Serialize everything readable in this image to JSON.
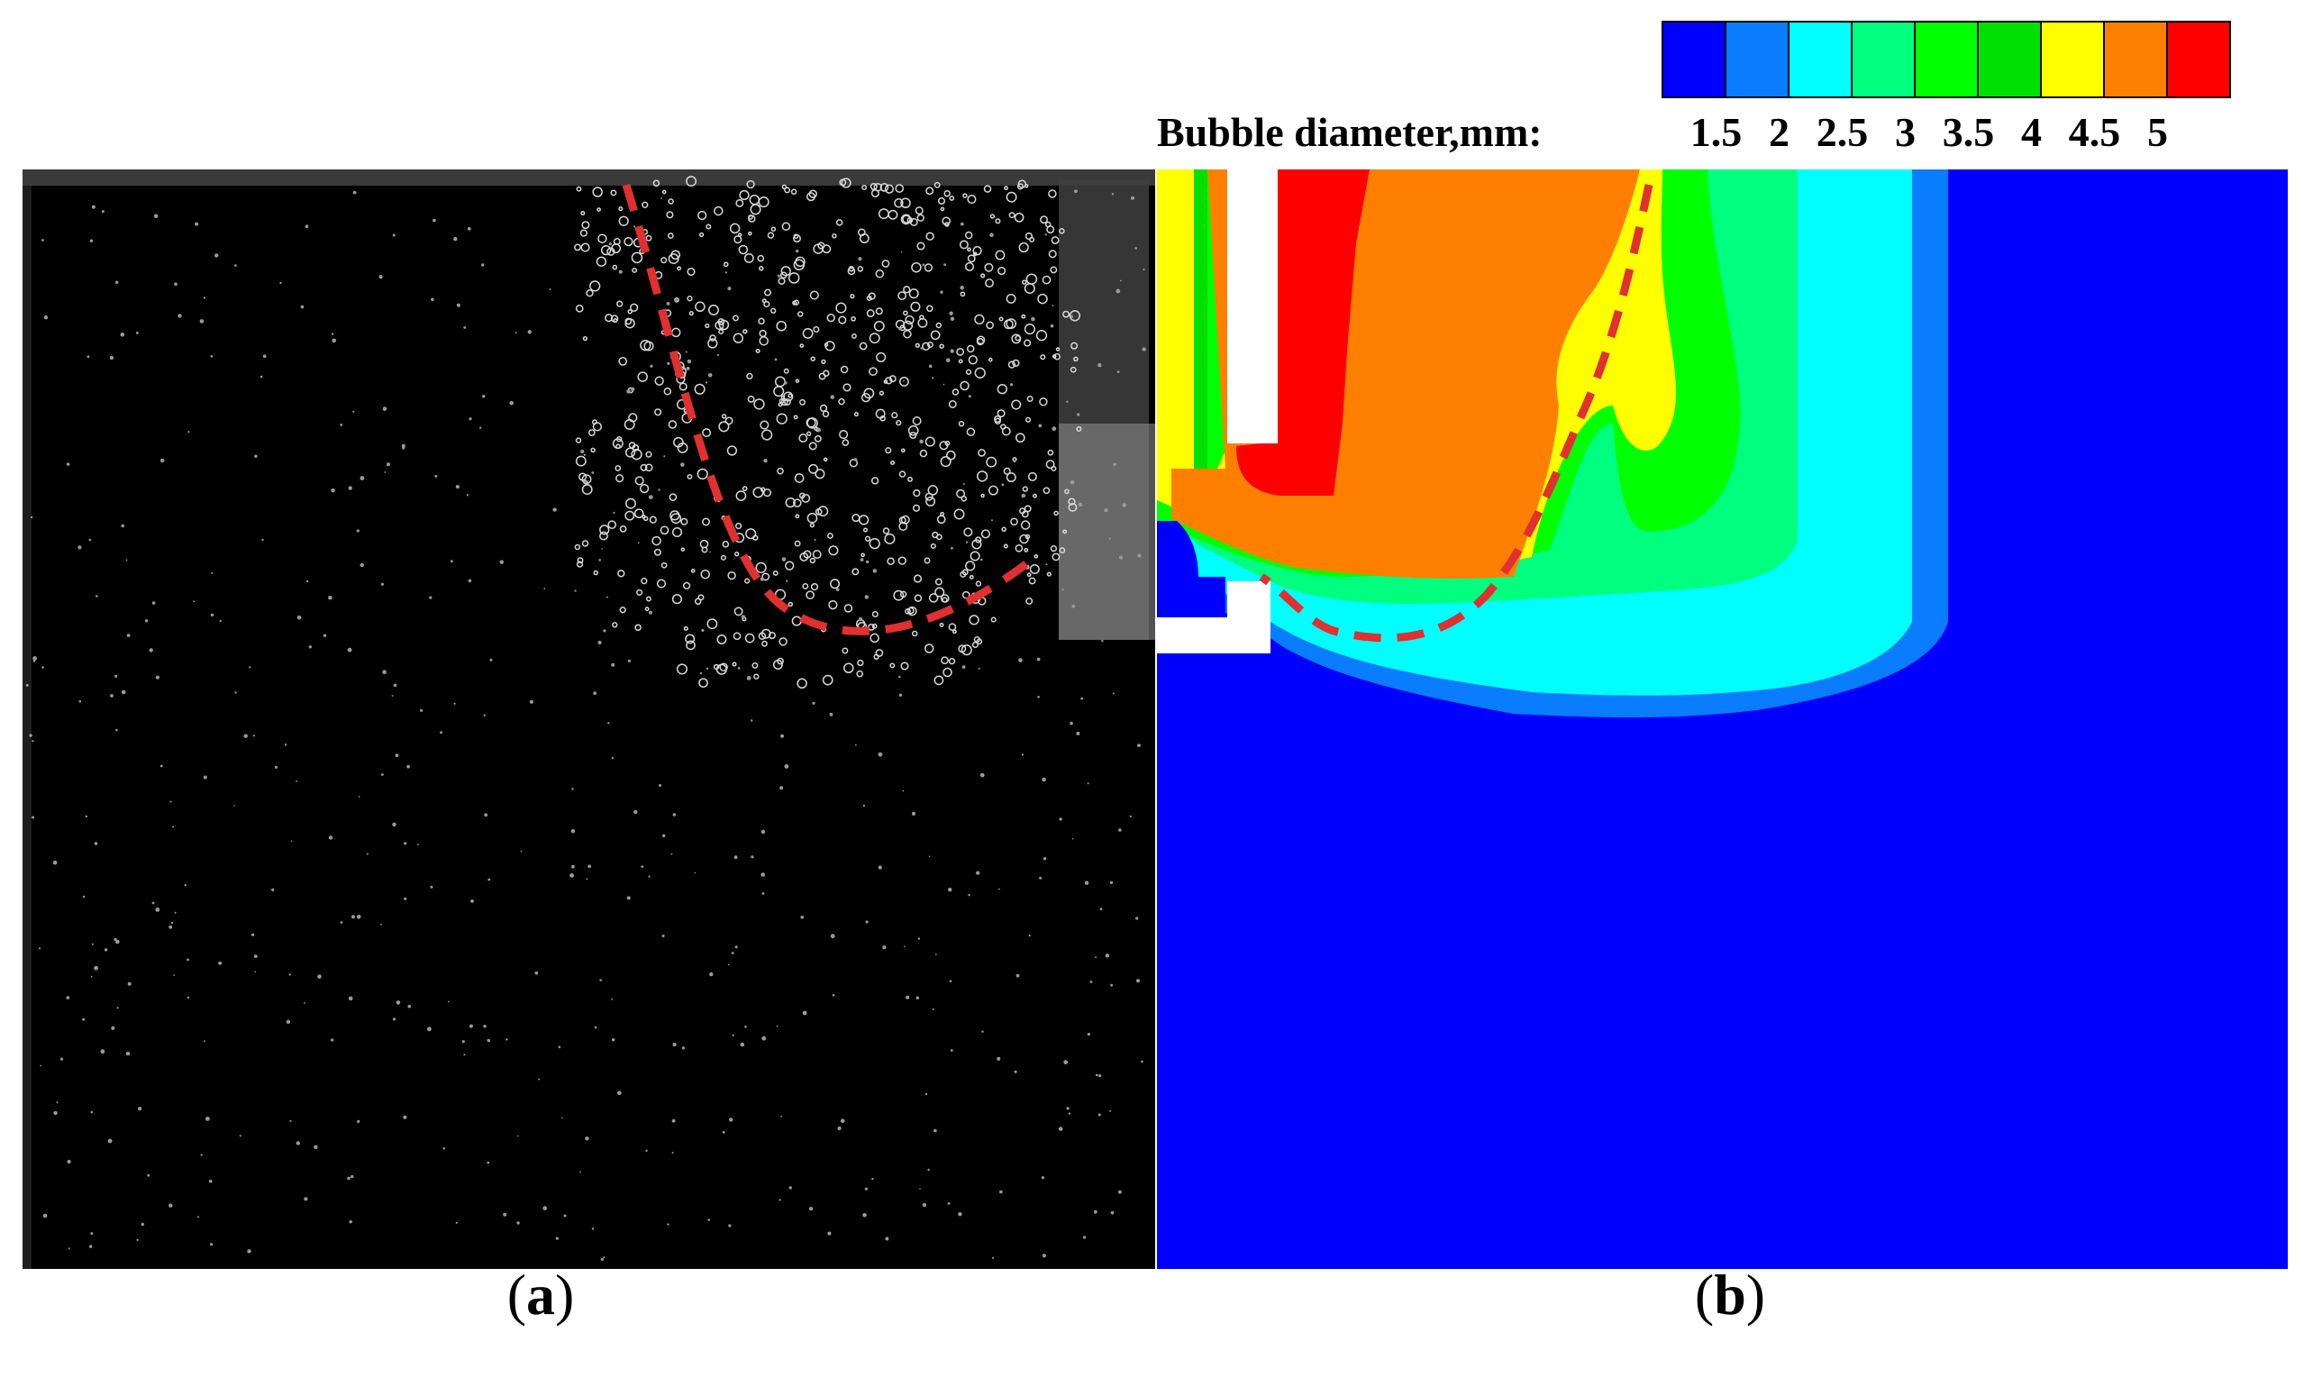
{
  "figure": {
    "legend": {
      "title": "Bubble diameter,mm:",
      "ticks": [
        "1.5",
        "2",
        "2.5",
        "3",
        "3.5",
        "4",
        "4.5",
        "5"
      ],
      "colors": [
        "#0000ff",
        "#0a7cff",
        "#00ffff",
        "#00ff7f",
        "#00ff00",
        "#00e000",
        "#ffff00",
        "#ff8000",
        "#ff0000"
      ]
    },
    "panel_a": {
      "label_letter": "a",
      "description_colors": {
        "background": "#000000",
        "bubbles": "#e6e6e6",
        "dashed_line": "#e03030"
      }
    },
    "panel_b": {
      "label_letter": "b",
      "colors": {
        "background": "#0000ff",
        "dashed_line": "#e03030"
      }
    }
  }
}
